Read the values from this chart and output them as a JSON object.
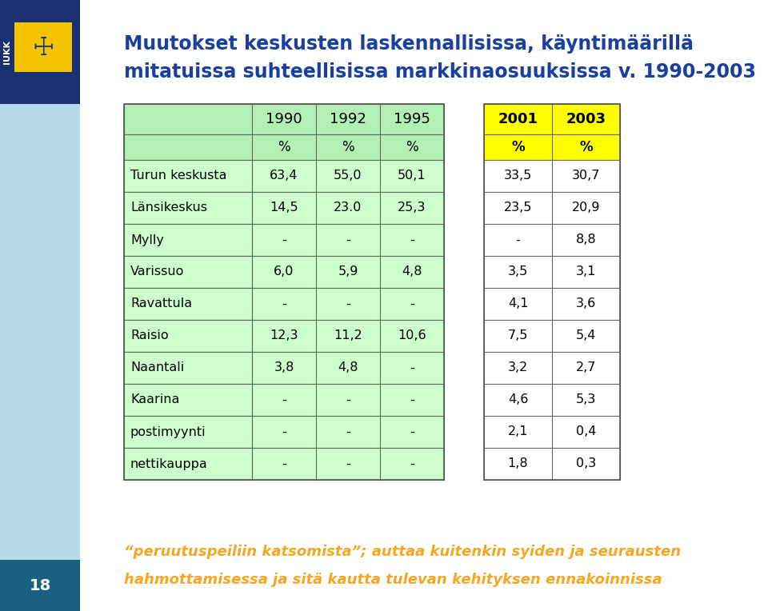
{
  "title_line1": "Muutokset keskusten laskennallisissa, käyntimäärillä",
  "title_line2": "mitatuissa suhteellisissa markkinaosuuksissa v. 1990-2003",
  "title_color": "#1a3f9e",
  "bg_color": "#ffffff",
  "rows": [
    [
      "Turun keskusta",
      "63,4",
      "55,0",
      "50,1",
      "33,5",
      "30,7"
    ],
    [
      "Länsikeskus",
      "14,5",
      "23.0",
      "25,3",
      "23,5",
      "20,9"
    ],
    [
      "Mylly",
      "-",
      "-",
      "-",
      "-",
      "8,8"
    ],
    [
      "Varissuo",
      "6,0",
      "5,9",
      "4,8",
      "3,5",
      "3,1"
    ],
    [
      "Ravattula",
      "-",
      "-",
      "-",
      "4,1",
      "3,6"
    ],
    [
      "Raisio",
      "12,3",
      "11,2",
      "10,6",
      "7,5",
      "5,4"
    ],
    [
      "Naantali",
      "3,8",
      "4,8",
      "-",
      "3,2",
      "2,7"
    ],
    [
      "Kaarina",
      "-",
      "-",
      "-",
      "4,6",
      "5,3"
    ],
    [
      "postimyynti",
      "-",
      "-",
      "-",
      "2,1",
      "0,4"
    ],
    [
      "nettikauppa",
      "-",
      "-",
      "-",
      "1,8",
      "0,3"
    ]
  ],
  "left_header_bg": "#b3f0b3",
  "right_header_bg": "#ffff00",
  "row_bg": "#ccffcc",
  "right_row_bg": "#ffffff",
  "footer_line1": "“peruutuspeiliin katsomista”; auttaa kuitenkin syiden ja seurausten",
  "footer_line2": "hahmottamisessa ja sitä kautta tulevan kehityksen ennakoinnissa",
  "footer_color": "#f5a623",
  "page_number": "18",
  "sidebar_light": "#b3dce8",
  "sidebar_dark": "#1a5f7a",
  "logo_yellow": "#f5c400",
  "logo_dark": "#1a3f9e"
}
